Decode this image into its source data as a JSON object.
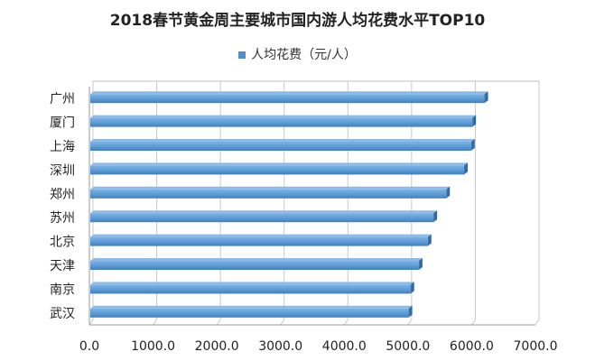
{
  "chart_data": {
    "type": "bar",
    "orientation": "horizontal",
    "title": "2018春节黄金周主要城市国内游人均花费水平TOP10",
    "legend": "人均花费（元/人）",
    "legend_position": "top",
    "categories": [
      "广州",
      "厦门",
      "上海",
      "深圳",
      "郑州",
      "苏州",
      "北京",
      "天津",
      "南京",
      "武汉"
    ],
    "values": [
      6200,
      6010,
      5990,
      5880,
      5600,
      5400,
      5310,
      5170,
      5040,
      5010
    ],
    "xlim": [
      0,
      7000
    ],
    "xticks": [
      0,
      1000,
      2000,
      3000,
      4000,
      5000,
      6000,
      7000
    ],
    "tick_labels": [
      "0.0",
      "1000.0",
      "2000.0",
      "3000.0",
      "4000.0",
      "5000.0",
      "6000.0",
      "7000.0"
    ],
    "grid": true,
    "bar_color": "#5b9bd5"
  }
}
